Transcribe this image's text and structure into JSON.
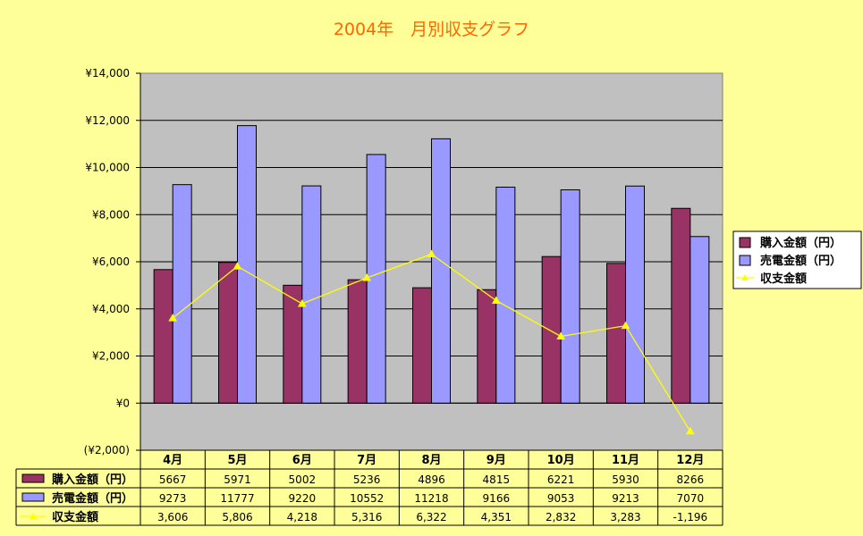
{
  "title": "2004年　月別収支グラフ",
  "colors": {
    "background": "#ffff99",
    "plot_area": "#c0c0c0",
    "series1": "#993366",
    "series2": "#9999ff",
    "series3": "#ffff00",
    "title": "#ff6600"
  },
  "chart_data": {
    "type": "bar",
    "title": "2004年　月別収支グラフ",
    "categories": [
      "4月",
      "5月",
      "6月",
      "7月",
      "8月",
      "9月",
      "10月",
      "11月",
      "12月"
    ],
    "series": [
      {
        "name": "購入金額（円）",
        "type": "bar",
        "values": [
          5667,
          5971,
          5002,
          5236,
          4896,
          4815,
          6221,
          5930,
          8266
        ],
        "labels": [
          "5667",
          "5971",
          "5002",
          "5236",
          "4896",
          "4815",
          "6221",
          "5930",
          "8266"
        ]
      },
      {
        "name": "売電金額（円）",
        "type": "bar",
        "values": [
          9273,
          11777,
          9220,
          10552,
          11218,
          9166,
          9053,
          9213,
          7070
        ],
        "labels": [
          "9273",
          "11777",
          "9220",
          "10552",
          "11218",
          "9166",
          "9053",
          "9213",
          "7070"
        ]
      },
      {
        "name": "収支金額",
        "type": "line",
        "values": [
          3606,
          5806,
          4218,
          5316,
          6322,
          4351,
          2832,
          3283,
          -1196
        ],
        "labels": [
          "3,606",
          "5,806",
          "4,218",
          "5,316",
          "6,322",
          "4,351",
          "2,832",
          "3,283",
          "-1,196"
        ]
      }
    ],
    "yaxis": {
      "min": -2000,
      "max": 14000,
      "step": 2000,
      "tick_labels": [
        "(¥2,000)",
        "¥0",
        "¥2,000",
        "¥4,000",
        "¥6,000",
        "¥8,000",
        "¥10,000",
        "¥12,000",
        "¥14,000"
      ]
    },
    "grid": true,
    "legend_position": "right",
    "data_table": true
  }
}
